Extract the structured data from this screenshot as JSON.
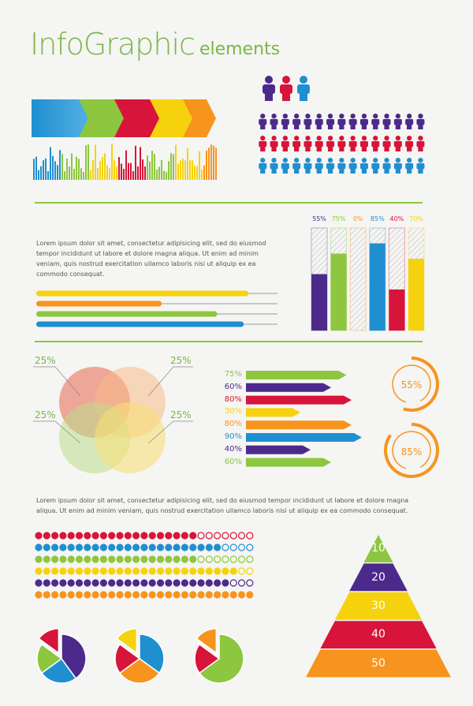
{
  "title": {
    "main": "InfoGraphic",
    "sub": "elements"
  },
  "paragraph1": "Lorem ipsum dolor sit amet, consectetur adipisicing elit, sed do eiusmod tempor incididunt ut labore et dolore magna aliqua. Ut enim ad minim veniam, quis nostrud exercitation ullamco laboris nisi ut aliquip ex ea commodo consequat.",
  "paragraph2": "Lorem ipsum dolor sit amet, consectetur adipisicing elit, sed do eiusmod tempor incididunt ut labore et dolore magna aliqua. Ut enim ad minim veniam, quis nostrud exercitation ullamco laboris nisi ut aliquip ex ea commodo consequat.",
  "colors": {
    "green": "#8dc63f",
    "blue": "#1f8fd0",
    "red": "#d7143a",
    "yellow": "#f5d20d",
    "orange": "#f7941d",
    "purple": "#4b2a8c",
    "lightgreen": "#a6ce39",
    "title": "#7ab648"
  },
  "vertical_bars": [
    {
      "label": "55%",
      "value": 55,
      "color": "#4b2a8c"
    },
    {
      "label": "75%",
      "value": 75,
      "color": "#8dc63f"
    },
    {
      "label": "0%",
      "value": 0,
      "color": "#f7941d"
    },
    {
      "label": "85%",
      "value": 85,
      "color": "#1f8fd0"
    },
    {
      "label": "40%",
      "value": 40,
      "color": "#d7143a"
    },
    {
      "label": "70%",
      "value": 70,
      "color": "#f5d20d"
    }
  ],
  "progress_bars": [
    {
      "value": 0.88,
      "color": "#f5d20d"
    },
    {
      "value": 0.52,
      "color": "#f7941d"
    },
    {
      "value": 0.75,
      "color": "#8dc63f"
    },
    {
      "value": 0.86,
      "color": "#1f8fd0"
    }
  ],
  "venn": {
    "labels": [
      "25%",
      "25%",
      "25%",
      "25%"
    ]
  },
  "arrow_bars": [
    {
      "label": "75%",
      "value": 75,
      "color": "#8dc63f"
    },
    {
      "label": "60%",
      "value": 60,
      "color": "#4b2a8c"
    },
    {
      "label": "80%",
      "value": 80,
      "color": "#d7143a"
    },
    {
      "label": "30%",
      "value": 30,
      "color": "#f5d20d"
    },
    {
      "label": "80%",
      "value": 80,
      "color": "#f7941d"
    },
    {
      "label": "90%",
      "value": 90,
      "color": "#1f8fd0"
    },
    {
      "label": "40%",
      "value": 40,
      "color": "#4b2a8c"
    },
    {
      "label": "60%",
      "value": 60,
      "color": "#8dc63f"
    }
  ],
  "rings": [
    {
      "label": "55%",
      "value": 55
    },
    {
      "label": "85%",
      "value": 85
    }
  ],
  "dot_rows": [
    {
      "color": "#d7143a",
      "filled": 20,
      "total": 27
    },
    {
      "color": "#1f8fd0",
      "filled": 23,
      "total": 27
    },
    {
      "color": "#8dc63f",
      "filled": 20,
      "total": 27
    },
    {
      "color": "#f5d20d",
      "filled": 25,
      "total": 27
    },
    {
      "color": "#4b2a8c",
      "filled": 24,
      "total": 27
    },
    {
      "color": "#f7941d",
      "filled": 27,
      "total": 27
    }
  ],
  "pyramid": [
    {
      "label": "10",
      "color": "#8dc63f"
    },
    {
      "label": "20",
      "color": "#4b2a8c"
    },
    {
      "label": "30",
      "color": "#f5d20d"
    },
    {
      "label": "40",
      "color": "#d7143a"
    },
    {
      "label": "50",
      "color": "#f7941d"
    }
  ],
  "people_rows": [
    {
      "color": "#4b2a8c"
    },
    {
      "color": "#d7143a"
    },
    {
      "color": "#1f8fd0"
    }
  ],
  "pies": [
    {
      "slices": [
        {
          "value": 40,
          "color": "#4b2a8c"
        },
        {
          "value": 25,
          "color": "#1f8fd0"
        },
        {
          "value": 20,
          "color": "#8dc63f"
        },
        {
          "value": 15,
          "color": "#d7143a"
        }
      ]
    },
    {
      "slices": [
        {
          "value": 35,
          "color": "#1f8fd0"
        },
        {
          "value": 30,
          "color": "#f7941d"
        },
        {
          "value": 20,
          "color": "#d7143a"
        },
        {
          "value": 15,
          "color": "#f5d20d"
        }
      ]
    },
    {
      "slices": [
        {
          "value": 65,
          "color": "#8dc63f"
        },
        {
          "value": 20,
          "color": "#d7143a"
        },
        {
          "value": 15,
          "color": "#f7941d"
        }
      ]
    }
  ]
}
